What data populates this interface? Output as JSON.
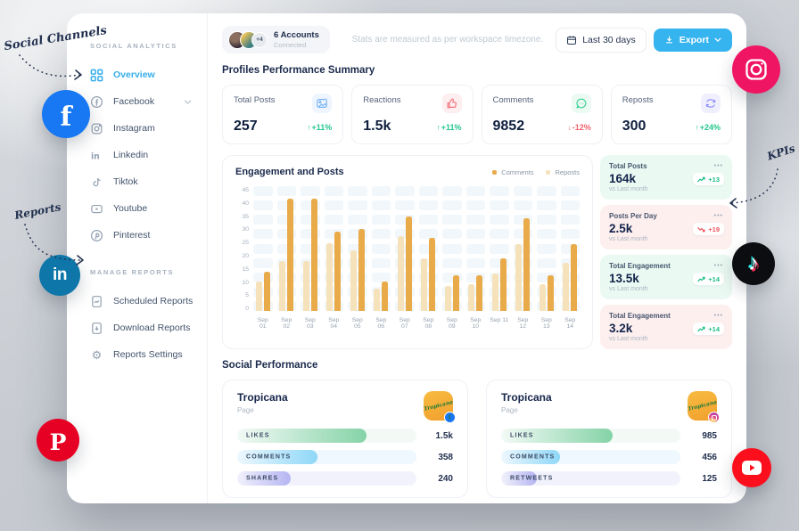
{
  "annotations": {
    "social_channels": "Social Channels",
    "reports": "Reports",
    "kpis": "KPIs"
  },
  "sidebar": {
    "section_analytics": "SOCIAL ANALYTICS",
    "section_reports": "MANAGE REPORTS",
    "items": [
      {
        "label": "Overview",
        "icon": "grid-icon",
        "active": true
      },
      {
        "label": "Facebook",
        "icon": "facebook-icon",
        "expandable": true
      },
      {
        "label": "Instagram",
        "icon": "instagram-icon"
      },
      {
        "label": "Linkedin",
        "icon": "linkedin-icon"
      },
      {
        "label": "Tiktok",
        "icon": "tiktok-icon"
      },
      {
        "label": "Youtube",
        "icon": "youtube-icon"
      },
      {
        "label": "Pinterest",
        "icon": "pinterest-icon"
      }
    ],
    "report_items": [
      {
        "label": "Scheduled Reports",
        "icon": "document-chart-icon"
      },
      {
        "label": "Download Reports",
        "icon": "document-download-icon"
      },
      {
        "label": "Reports Settings",
        "icon": "gear-icon"
      }
    ]
  },
  "topbar": {
    "accounts_overflow": "+4",
    "accounts_title": "6 Accounts",
    "accounts_subtitle": "Connected",
    "timezone_note": "Stats are measured as per workspace timezone.",
    "date_range": "Last 30 days",
    "export": "Export"
  },
  "summary": {
    "heading": "Profiles Performance Summary",
    "cards": [
      {
        "label": "Total Posts",
        "value": "257",
        "arrow": "↑",
        "delta": "+11%",
        "direction": "up",
        "icon": "image-icon"
      },
      {
        "label": "Reactions",
        "value": "1.5k",
        "arrow": "↑",
        "delta": "+11%",
        "direction": "up",
        "icon": "thumbs-up-icon"
      },
      {
        "label": "Comments",
        "value": "9852",
        "arrow": "↓",
        "delta": "-12%",
        "direction": "down",
        "icon": "comment-icon"
      },
      {
        "label": "Reposts",
        "value": "300",
        "arrow": "↑",
        "delta": "+24%",
        "direction": "up",
        "icon": "repost-icon"
      }
    ]
  },
  "chart_data": {
    "type": "bar",
    "title": "Engagement and Posts",
    "categories": [
      "Sep 01",
      "Sep 02",
      "Sep 03",
      "Sep 04",
      "Sep 05",
      "Sep 06",
      "Sep 07",
      "Sep 08",
      "Sep 09",
      "Sep 10",
      "Sep 11",
      "Sep 12",
      "Sep 13",
      "Sep 14"
    ],
    "series": [
      {
        "name": "Comments",
        "color": "#e9ab4a",
        "values": [
          14,
          40.5,
          40.5,
          28.5,
          29.5,
          10.5,
          34,
          26.5,
          13,
          13,
          19,
          33.5,
          13,
          24
        ]
      },
      {
        "name": "Reposts",
        "color": "#f6e2ba",
        "values": [
          10.5,
          18,
          18,
          24.5,
          22,
          8,
          27,
          19,
          9,
          9.5,
          13.5,
          24,
          9.5,
          17.5
        ]
      }
    ],
    "ylim": [
      0,
      45
    ],
    "yticks": [
      0,
      5,
      10,
      15,
      20,
      25,
      30,
      35,
      40,
      45
    ],
    "grid": true,
    "legend_position": "top-right"
  },
  "kpi_cards": [
    {
      "label": "Total Posts",
      "value": "164k",
      "compare": "vs Last month",
      "delta": "+13",
      "trend": "up",
      "tint": "green"
    },
    {
      "label": "Posts Per Day",
      "value": "2.5k",
      "compare": "vs Last month",
      "delta": "+19",
      "trend": "down",
      "tint": "pink"
    },
    {
      "label": "Total Engagement",
      "value": "13.5k",
      "compare": "vs Last month",
      "delta": "+14",
      "trend": "up",
      "tint": "green"
    },
    {
      "label": "Total Engagement",
      "value": "3.2k",
      "compare": "vs Last month",
      "delta": "+14",
      "trend": "up",
      "tint": "pink"
    }
  ],
  "social_performance": {
    "heading": "Social Performance",
    "cards": [
      {
        "title": "Tropicana",
        "subtitle": "Page",
        "network": "facebook",
        "avatar_text": "Tropicana",
        "metrics": [
          {
            "label": "LIKES",
            "value": "1.5k",
            "pct": 72
          },
          {
            "label": "COMMENTS",
            "value": "358",
            "pct": 45
          },
          {
            "label": "SHARES",
            "value": "240",
            "pct": 30
          }
        ]
      },
      {
        "title": "Tropicana",
        "subtitle": "Page",
        "network": "instagram",
        "avatar_text": "Tropicana",
        "metrics": [
          {
            "label": "LIKES",
            "value": "985",
            "pct": 62
          },
          {
            "label": "COMMENTS",
            "value": "456",
            "pct": 33
          },
          {
            "label": "RETWEETS",
            "value": "125",
            "pct": 20
          }
        ]
      }
    ]
  },
  "icons": {
    "ellipsis": "•••",
    "note_glyph": "♪",
    "facebook_glyph": "f",
    "linkedin_glyph": "in",
    "pinterest_glyph": "P"
  },
  "colors": {
    "accent_blue": "#35b4ef",
    "active_blue": "#35aee8",
    "green": "#23c78c",
    "red": "#f2616b",
    "bar_dark": "#e9ab4a",
    "bar_light": "#f6e2ba",
    "navy": "#15244a",
    "kpi_green_bg": "#eafaf2",
    "kpi_pink_bg": "#fdefee"
  }
}
